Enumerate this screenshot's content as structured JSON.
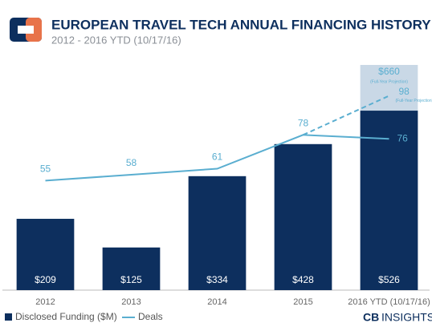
{
  "chart_data": {
    "type": "bar-line",
    "title": "EUROPEAN TRAVEL TECH ANNUAL FINANCING HISTORY",
    "subtitle": "2012 - 2016 YTD (10/17/16)",
    "categories": [
      "2012",
      "2013",
      "2014",
      "2015",
      "2016 YTD (10/17/16)"
    ],
    "series": [
      {
        "name": "Disclosed Funding ($M)",
        "type": "bar",
        "color": "#0d2f5e",
        "values": [
          209,
          125,
          334,
          428,
          526
        ],
        "value_labels": [
          "$209",
          "$125",
          "$334",
          "$428",
          "$526"
        ]
      },
      {
        "name": "Deals",
        "type": "line",
        "axis": "y2",
        "color": "#5aaed0",
        "values": [
          55,
          58,
          61,
          78,
          76
        ]
      }
    ],
    "projection": {
      "bar_value": 660,
      "bar_label": "$660",
      "bar_note": "(Full-Year Projection)",
      "bar_color": "#c9d8e6",
      "deals_value": 98,
      "deals_note": "(Full-Year Projection)"
    },
    "ylim": [
      0,
      700
    ],
    "y2lim": [
      0,
      120
    ],
    "brand": {
      "bold": "CB",
      "light": "INSIGHTS"
    }
  }
}
